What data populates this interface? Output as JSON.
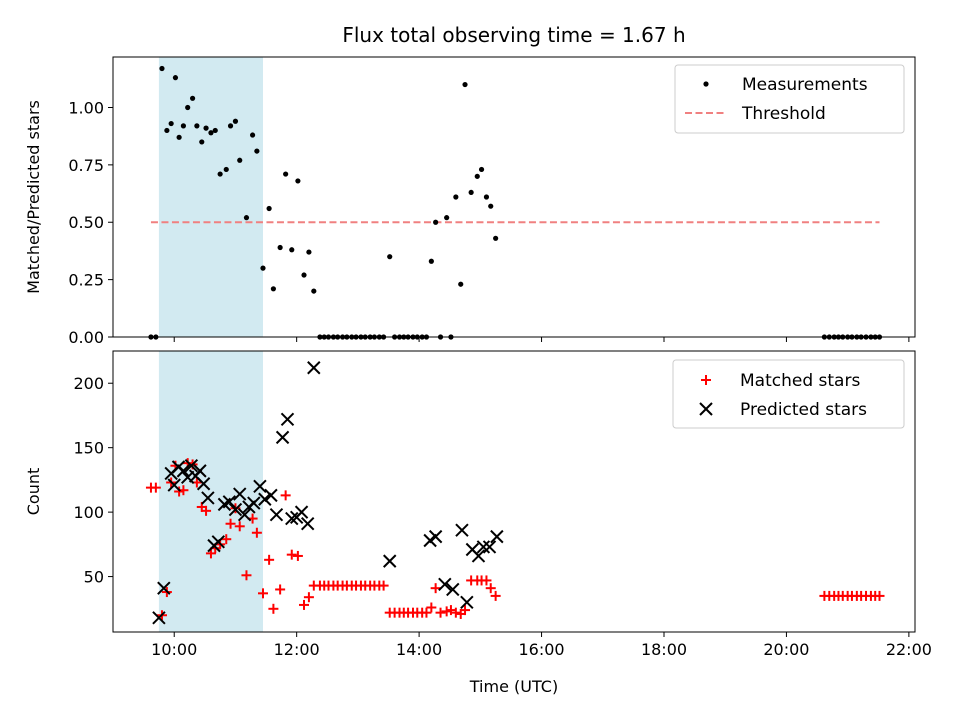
{
  "chart_data": [
    {
      "type": "scatter",
      "title": "Flux total observing time = 1.67 h",
      "xlabel": "",
      "ylabel": "Matched/Predicted stars",
      "xlim": [
        9.0,
        22.1
      ],
      "ylim": [
        0.0,
        1.22
      ],
      "x_ticks": [
        10,
        12,
        14,
        16,
        18,
        20,
        22
      ],
      "y_ticks": [
        0.0,
        0.25,
        0.5,
        0.75,
        1.0
      ],
      "y_tick_labels": [
        "0.00",
        "0.25",
        "0.50",
        "0.75",
        "1.00"
      ],
      "shaded_region": {
        "x0": 9.75,
        "x1": 11.45,
        "color": "#add8e6"
      },
      "legend": {
        "position": "upper right",
        "entries": [
          "Measurements",
          "Threshold"
        ]
      },
      "series": [
        {
          "name": "Measurements",
          "marker": "dot",
          "color": "#000000",
          "x": [
            9.62,
            9.7,
            9.8,
            9.88,
            9.95,
            10.02,
            10.08,
            10.15,
            10.22,
            10.3,
            10.37,
            10.45,
            10.52,
            10.6,
            10.67,
            10.75,
            10.85,
            10.92,
            11.0,
            11.07,
            11.18,
            11.28,
            11.35,
            11.45,
            11.55,
            11.62,
            11.73,
            11.82,
            11.92,
            12.02,
            12.12,
            12.2,
            12.28,
            12.38,
            12.45,
            12.52,
            12.6,
            12.67,
            12.75,
            12.82,
            12.9,
            12.97,
            13.05,
            13.12,
            13.2,
            13.27,
            13.35,
            13.42,
            13.52,
            13.6,
            13.68,
            13.75,
            13.82,
            13.9,
            13.97,
            14.05,
            14.12,
            14.2,
            14.27,
            14.35,
            14.45,
            14.52,
            14.6,
            14.68,
            14.75,
            14.85,
            14.95,
            15.02,
            15.1,
            15.17,
            15.25,
            20.62,
            20.7,
            20.78,
            20.85,
            20.92,
            21.0,
            21.07,
            21.15,
            21.22,
            21.3,
            21.38,
            21.45,
            21.52
          ],
          "y": [
            0.0,
            0.0,
            1.17,
            0.9,
            0.93,
            1.13,
            0.87,
            0.92,
            1.0,
            1.04,
            0.92,
            0.85,
            0.91,
            0.89,
            0.9,
            0.71,
            0.73,
            0.92,
            0.94,
            0.77,
            0.52,
            0.88,
            0.81,
            0.3,
            0.56,
            0.21,
            0.39,
            0.71,
            0.38,
            0.68,
            0.27,
            0.37,
            0.2,
            0.0,
            0.0,
            0.0,
            0.0,
            0.0,
            0.0,
            0.0,
            0.0,
            0.0,
            0.0,
            0.0,
            0.0,
            0.0,
            0.0,
            0.0,
            0.35,
            0.0,
            0.0,
            0.0,
            0.0,
            0.0,
            0.0,
            0.0,
            0.0,
            0.33,
            0.5,
            0.0,
            0.52,
            0.0,
            0.61,
            0.23,
            1.1,
            0.63,
            0.7,
            0.73,
            0.61,
            0.57,
            0.43,
            0.0,
            0.0,
            0.0,
            0.0,
            0.0,
            0.0,
            0.0,
            0.0,
            0.0,
            0.0,
            0.0,
            0.0,
            0.0
          ]
        },
        {
          "name": "Threshold",
          "marker": "dashed-line",
          "color": "#f08080",
          "x": [
            9.62,
            21.52
          ],
          "y": [
            0.5,
            0.5
          ]
        }
      ]
    },
    {
      "type": "scatter",
      "title": "",
      "xlabel": "Time (UTC)",
      "ylabel": "Count",
      "xlim": [
        9.0,
        22.1
      ],
      "ylim": [
        7,
        225
      ],
      "x_ticks": [
        10,
        12,
        14,
        16,
        18,
        20,
        22
      ],
      "x_tick_labels": [
        "10:00",
        "12:00",
        "14:00",
        "16:00",
        "18:00",
        "20:00",
        "22:00"
      ],
      "y_ticks": [
        50,
        100,
        150,
        200
      ],
      "y_tick_labels": [
        "50",
        "100",
        "150",
        "200"
      ],
      "shaded_region": {
        "x0": 9.75,
        "x1": 11.45,
        "color": "#add8e6"
      },
      "legend": {
        "position": "upper right",
        "entries": [
          "Matched stars",
          "Predicted stars"
        ]
      },
      "series": [
        {
          "name": "Matched stars",
          "marker": "plus",
          "color": "#ff0000",
          "x": [
            9.62,
            9.7,
            9.8,
            9.88,
            9.95,
            10.02,
            10.08,
            10.15,
            10.22,
            10.3,
            10.37,
            10.45,
            10.52,
            10.6,
            10.67,
            10.75,
            10.85,
            10.92,
            11.0,
            11.07,
            11.18,
            11.28,
            11.35,
            11.45,
            11.55,
            11.62,
            11.73,
            11.82,
            11.92,
            12.02,
            12.12,
            12.2,
            12.28,
            12.38,
            12.45,
            12.52,
            12.6,
            12.67,
            12.75,
            12.82,
            12.9,
            12.97,
            13.05,
            13.12,
            13.2,
            13.27,
            13.35,
            13.42,
            13.52,
            13.6,
            13.68,
            13.75,
            13.82,
            13.9,
            13.97,
            14.05,
            14.12,
            14.2,
            14.27,
            14.35,
            14.45,
            14.52,
            14.6,
            14.68,
            14.75,
            14.85,
            14.95,
            15.02,
            15.1,
            15.17,
            15.25,
            20.62,
            20.7,
            20.78,
            20.85,
            20.92,
            21.0,
            21.07,
            21.15,
            21.22,
            21.3,
            21.38,
            21.45,
            21.52
          ],
          "y": [
            119,
            119,
            20,
            38,
            123,
            136,
            116,
            117,
            138,
            137,
            123,
            104,
            101,
            68,
            72,
            75,
            79,
            91,
            103,
            89,
            51,
            95,
            84,
            37,
            63,
            25,
            40,
            113,
            67,
            66,
            28,
            34,
            43,
            43,
            43,
            43,
            43,
            43,
            43,
            43,
            43,
            43,
            43,
            43,
            43,
            43,
            43,
            43,
            22,
            22,
            22,
            22,
            22,
            22,
            22,
            22,
            22,
            26,
            41,
            22,
            23,
            24,
            22,
            21,
            24,
            47,
            47,
            47,
            47,
            41,
            35,
            35,
            35,
            35,
            35,
            35,
            35,
            35,
            35,
            35,
            35,
            35,
            35,
            35
          ]
        },
        {
          "name": "Predicted stars",
          "marker": "x",
          "color": "#000000",
          "x": [
            9.75,
            9.83,
            9.95,
            10.0,
            10.07,
            10.15,
            10.22,
            10.28,
            10.35,
            10.42,
            10.48,
            10.55,
            10.65,
            10.72,
            10.82,
            10.9,
            11.0,
            11.07,
            11.15,
            11.22,
            11.3,
            11.4,
            11.48,
            11.58,
            11.67,
            11.77,
            11.85,
            11.92,
            12.0,
            12.08,
            12.18,
            12.28,
            13.52,
            14.18,
            14.27,
            14.42,
            14.55,
            14.7,
            14.78,
            14.87,
            14.97,
            15.05,
            15.15,
            15.27
          ],
          "y": [
            18,
            41,
            130,
            121,
            135,
            132,
            127,
            136,
            128,
            132,
            122,
            111,
            74,
            77,
            106,
            108,
            102,
            114,
            98,
            104,
            107,
            120,
            110,
            113,
            98,
            158,
            172,
            95,
            96,
            100,
            91,
            212,
            62,
            78,
            81,
            44,
            40,
            86,
            30,
            71,
            66,
            73,
            73,
            81
          ]
        }
      ]
    }
  ]
}
